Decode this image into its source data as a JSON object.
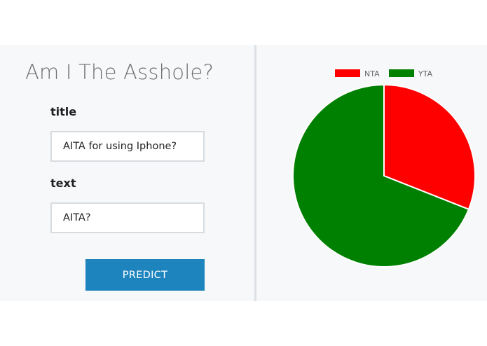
{
  "app": {
    "title": "Am I The Asshole?"
  },
  "form": {
    "title_label": "title",
    "title_value": "AITA for using Iphone?",
    "text_label": "text",
    "text_value": "AITA?",
    "predict_label": "PREDICT"
  },
  "colors": {
    "background": "#f7f8f9",
    "button": "#1e84be",
    "nta": "#ff0000",
    "yta": "#008000"
  },
  "chart_data": {
    "type": "pie",
    "title": "",
    "legend_position": "top",
    "categories": [
      "NTA",
      "YTA"
    ],
    "values": [
      0.31,
      0.69
    ],
    "colors": [
      "#ff0000",
      "#008000"
    ]
  }
}
